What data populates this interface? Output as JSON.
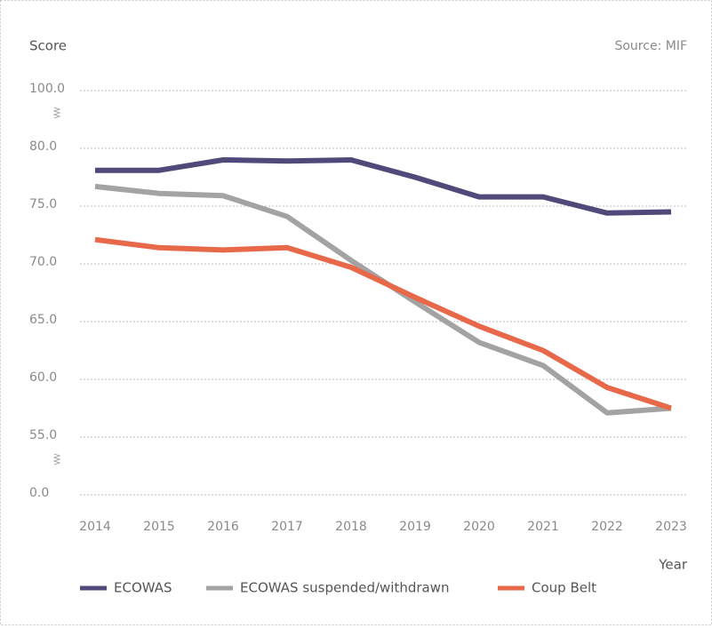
{
  "chart_data": {
    "type": "line",
    "y_label": "Score",
    "source": "Source: MIF",
    "x_label": "Year",
    "categories": [
      "2014",
      "2015",
      "2016",
      "2017",
      "2018",
      "2019",
      "2020",
      "2021",
      "2022",
      "2023"
    ],
    "series": [
      {
        "name": "ECOWAS",
        "color": "#4f4a7a",
        "values": [
          78.1,
          78.1,
          79.0,
          78.9,
          79.0,
          77.5,
          75.8,
          75.8,
          74.4,
          74.5
        ]
      },
      {
        "name": "ECOWAS suspended/withdrawn",
        "color": "#a3a3a3",
        "values": [
          76.7,
          76.1,
          75.9,
          74.1,
          70.3,
          66.7,
          63.2,
          61.2,
          57.1,
          57.5
        ]
      },
      {
        "name": "Coup Belt",
        "color": "#e8684a",
        "values": [
          72.1,
          71.4,
          71.2,
          71.4,
          69.7,
          67.1,
          64.6,
          62.5,
          59.3,
          57.5
        ]
      }
    ],
    "yticks": [
      {
        "value": 100,
        "label": "100.0"
      },
      {
        "value": 80,
        "label": "80.0"
      },
      {
        "value": 75,
        "label": "75.0"
      },
      {
        "value": 70,
        "label": "70.0"
      },
      {
        "value": 65,
        "label": "65.0"
      },
      {
        "value": 60,
        "label": "60.0"
      },
      {
        "value": 55,
        "label": "55.0"
      },
      {
        "value": 0,
        "label": "0.0"
      }
    ],
    "ylim": [
      0,
      100
    ],
    "grid": true,
    "legend": "bottom"
  }
}
